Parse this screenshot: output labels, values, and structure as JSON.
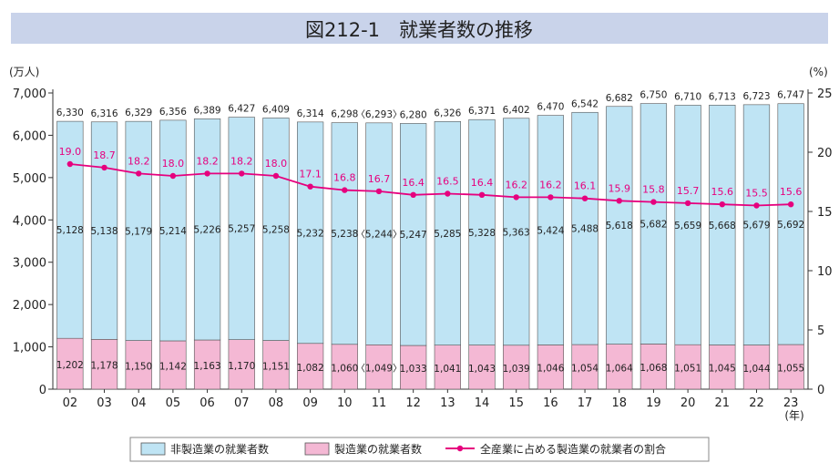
{
  "chart_data": {
    "type": "bar",
    "title": "図212-1　就業者数の推移",
    "categories": [
      "02",
      "03",
      "04",
      "05",
      "06",
      "07",
      "08",
      "09",
      "10",
      "11",
      "12",
      "13",
      "14",
      "15",
      "16",
      "17",
      "18",
      "19",
      "20",
      "21",
      "22",
      "23"
    ],
    "x_unit": "(年)",
    "left_axis": {
      "unit": "(万人)",
      "ylim": [
        0,
        7000
      ],
      "ticks": [
        "0",
        "1,000",
        "2,000",
        "3,000",
        "4,000",
        "5,000",
        "6,000",
        "7,000"
      ]
    },
    "right_axis": {
      "unit": "(%)",
      "ylim": [
        0,
        25
      ],
      "ticks": [
        "0",
        "5",
        "10",
        "15",
        "20",
        "25"
      ]
    },
    "stacked": true,
    "series": [
      {
        "name": "製造業の就業者数",
        "kind": "bar",
        "axis": "left",
        "color": "#f4b8d4",
        "values": [
          1202,
          1178,
          1150,
          1142,
          1163,
          1170,
          1151,
          1082,
          1060,
          1049,
          1033,
          1041,
          1043,
          1039,
          1046,
          1054,
          1064,
          1068,
          1051,
          1045,
          1044,
          1055
        ],
        "labels": [
          "1,202",
          "1,178",
          "1,150",
          "1,142",
          "1,163",
          "1,170",
          "1,151",
          "1,082",
          "1,060",
          "〈1,049〉",
          "1,033",
          "1,041",
          "1,043",
          "1,039",
          "1,046",
          "1,054",
          "1,064",
          "1,068",
          "1,051",
          "1,045",
          "1,044",
          "1,055"
        ]
      },
      {
        "name": "非製造業の就業者数",
        "kind": "bar",
        "axis": "left",
        "color": "#bfe4f4",
        "values": [
          5128,
          5138,
          5179,
          5214,
          5226,
          5257,
          5258,
          5232,
          5238,
          5244,
          5247,
          5285,
          5328,
          5363,
          5424,
          5488,
          5618,
          5682,
          5659,
          5668,
          5679,
          5692
        ],
        "labels": [
          "5,128",
          "5,138",
          "5,179",
          "5,214",
          "5,226",
          "5,257",
          "5,258",
          "5,232",
          "5,238",
          "〈5,244〉",
          "5,247",
          "5,285",
          "5,328",
          "5,363",
          "5,424",
          "5,488",
          "5,618",
          "5,682",
          "5,659",
          "5,668",
          "5,679",
          "5,692"
        ]
      },
      {
        "name": "全産業に占める製造業の就業者の割合",
        "kind": "line",
        "axis": "right",
        "color": "#e6007e",
        "values": [
          19.0,
          18.7,
          18.2,
          18.0,
          18.2,
          18.2,
          18.0,
          17.1,
          16.8,
          16.7,
          16.4,
          16.5,
          16.4,
          16.2,
          16.2,
          16.1,
          15.9,
          15.8,
          15.7,
          15.6,
          15.5,
          15.6
        ],
        "labels": [
          "19.0",
          "18.7",
          "18.2",
          "18.0",
          "18.2",
          "18.2",
          "18.0",
          "17.1",
          "16.8",
          "16.7",
          "16.4",
          "16.5",
          "16.4",
          "16.2",
          "16.2",
          "16.1",
          "15.9",
          "15.8",
          "15.7",
          "15.6",
          "15.5",
          "15.6"
        ]
      }
    ],
    "totals": [
      6330,
      6316,
      6329,
      6356,
      6389,
      6427,
      6409,
      6314,
      6298,
      6293,
      6280,
      6326,
      6371,
      6402,
      6470,
      6542,
      6682,
      6750,
      6710,
      6713,
      6723,
      6747
    ],
    "total_labels": [
      "6,330",
      "6,316",
      "6,329",
      "6,356",
      "6,389",
      "6,427",
      "6,409",
      "6,314",
      "6,298",
      "〈6,293〉",
      "6,280",
      "6,326",
      "6,371",
      "6,402",
      "6,470",
      "6,542",
      "6,682",
      "6,750",
      "6,710",
      "6,713",
      "6,723",
      "6,747"
    ],
    "legend_position": "bottom",
    "grid": false,
    "colors": {
      "title_band": "#c9d3ea",
      "axis": "#333333",
      "bar_outline": "#555555"
    }
  }
}
